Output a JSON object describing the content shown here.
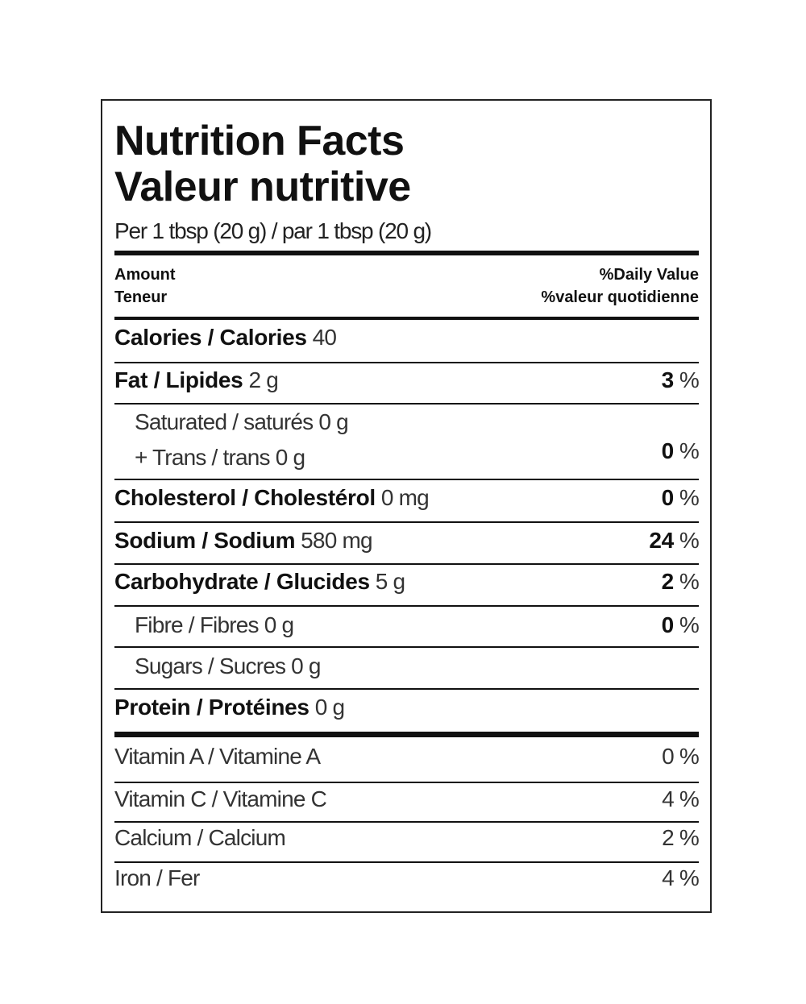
{
  "title_en": "Nutrition Facts",
  "title_fr": "Valeur nutritive",
  "serving": "Per 1 tbsp (20 g) / par 1 tbsp (20 g)",
  "header": {
    "amount": "Amount",
    "teneur": "Teneur",
    "dv_en": "%Daily Value",
    "dv_fr": "%valeur quotidienne"
  },
  "nutrients": [
    {
      "label": "Calories / Calories",
      "amount": "40",
      "dv": ""
    },
    {
      "label": "Fat / Lipides",
      "amount": "2 g",
      "dv": "3"
    },
    {
      "label": "Saturated / saturés 0 g",
      "label2": "+ Trans / trans 0 g",
      "dv": "0"
    },
    {
      "label": "Cholesterol / Cholestérol",
      "amount": "0 mg",
      "dv": "0"
    },
    {
      "label": "Sodium / Sodium",
      "amount": "580 mg",
      "dv": "24"
    },
    {
      "label": "Carbohydrate / Glucides",
      "amount": "5 g",
      "dv": "2"
    },
    {
      "label": "Fibre / Fibres 0 g",
      "dv": "0"
    },
    {
      "label": "Sugars / Sucres 0 g",
      "dv": ""
    },
    {
      "label": "Protein / Protéines",
      "amount": "0 g",
      "dv": ""
    }
  ],
  "percent_sign": "%",
  "vitamins": [
    {
      "label": "Vitamin A / Vitamine A",
      "dv": "0 %"
    },
    {
      "label": "Vitamin C / Vitamine C",
      "dv": "4 %"
    },
    {
      "label": "Calcium / Calcium",
      "dv": "2 %"
    },
    {
      "label": "Iron / Fer",
      "dv": "4 %"
    }
  ]
}
